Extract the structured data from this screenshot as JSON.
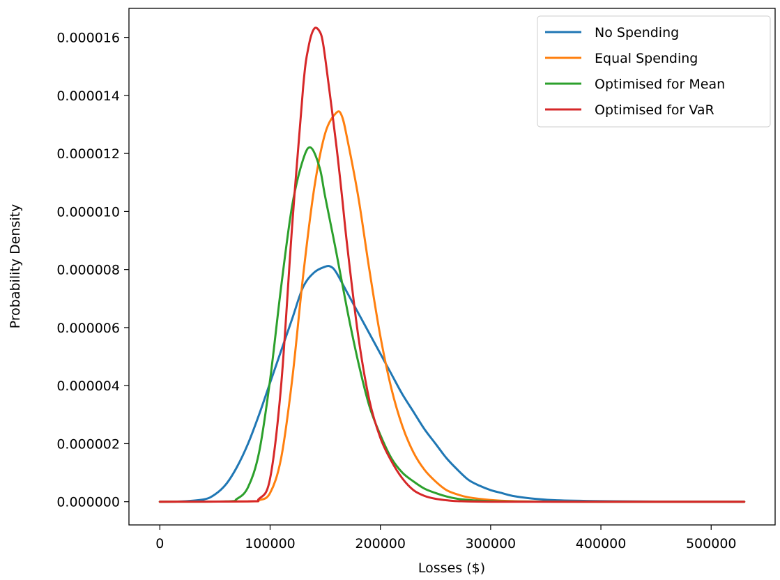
{
  "chart_data": {
    "type": "line",
    "xlabel": "Losses ($)",
    "ylabel": "Probability Density",
    "xlim": [
      -28000,
      558000
    ],
    "ylim": [
      -8e-07,
      1.7e-05
    ],
    "xticks": [
      0,
      100000,
      200000,
      300000,
      400000,
      500000
    ],
    "xtick_labels": [
      "0",
      "100000",
      "200000",
      "300000",
      "400000",
      "500000"
    ],
    "yticks": [
      0,
      2e-06,
      4e-06,
      6e-06,
      8e-06,
      1e-05,
      1.2e-05,
      1.4e-05,
      1.6e-05
    ],
    "ytick_labels": [
      "0.000000",
      "0.000002",
      "0.000004",
      "0.000006",
      "0.000008",
      "0.000010",
      "0.000012",
      "0.000014",
      "0.000016"
    ],
    "grid": false,
    "legend_position": "top-right",
    "series": [
      {
        "name": "No Spending",
        "color": "#1f77b4",
        "x": [
          0,
          20000,
          40000,
          50000,
          60000,
          70000,
          80000,
          90000,
          100000,
          110000,
          120000,
          130000,
          140000,
          150000,
          155000,
          160000,
          170000,
          180000,
          190000,
          200000,
          210000,
          220000,
          230000,
          240000,
          250000,
          260000,
          270000,
          280000,
          290000,
          300000,
          310000,
          320000,
          340000,
          360000,
          400000,
          450000,
          530000
        ],
        "y": [
          0,
          1e-08,
          8e-08,
          2.5e-07,
          6e-07,
          1.2e-06,
          2e-06,
          3e-06,
          4.1e-06,
          5.2e-06,
          6.3e-06,
          7.4e-06,
          7.9e-06,
          8.1e-06,
          8.1e-06,
          7.9e-06,
          7.2e-06,
          6.5e-06,
          5.8e-06,
          5.1e-06,
          4.4e-06,
          3.7e-06,
          3.1e-06,
          2.5e-06,
          2e-06,
          1.5e-06,
          1.1e-06,
          7.5e-07,
          5.5e-07,
          4e-07,
          3e-07,
          2e-07,
          1e-07,
          5e-08,
          2e-08,
          5e-09,
          0
        ]
      },
      {
        "name": "Equal Spending",
        "color": "#ff7f0e",
        "x": [
          0,
          80000,
          90000,
          100000,
          110000,
          120000,
          130000,
          140000,
          150000,
          160000,
          165000,
          170000,
          180000,
          190000,
          200000,
          210000,
          220000,
          230000,
          240000,
          250000,
          260000,
          270000,
          280000,
          300000,
          320000,
          350000,
          400000,
          530000
        ],
        "y": [
          0,
          1e-08,
          5e-08,
          3e-07,
          1.5e-06,
          4.2e-06,
          7.8e-06,
          1.08e-05,
          1.27e-05,
          1.34e-05,
          1.33e-05,
          1.25e-05,
          1.05e-05,
          8e-06,
          5.7e-06,
          3.9e-06,
          2.6e-06,
          1.7e-06,
          1.1e-06,
          7e-07,
          4e-07,
          2.5e-07,
          1.5e-07,
          6e-08,
          2e-08,
          5e-09,
          0,
          0
        ]
      },
      {
        "name": "Optimised for Mean",
        "color": "#2ca02c",
        "x": [
          0,
          60000,
          70000,
          80000,
          90000,
          100000,
          110000,
          120000,
          130000,
          137000,
          145000,
          150000,
          160000,
          170000,
          180000,
          190000,
          200000,
          210000,
          220000,
          230000,
          240000,
          250000,
          260000,
          270000,
          280000,
          300000,
          330000,
          400000,
          530000
        ],
        "y": [
          0,
          1e-08,
          1e-07,
          5e-07,
          1.7e-06,
          4.2e-06,
          7.4e-06,
          1.02e-05,
          1.18e-05,
          1.22e-05,
          1.15e-05,
          1.05e-05,
          8.6e-06,
          6.6e-06,
          4.8e-06,
          3.3e-06,
          2.3e-06,
          1.5e-06,
          1e-06,
          7e-07,
          4.5e-07,
          3e-07,
          1.8e-07,
          1e-07,
          6e-08,
          2e-08,
          5e-09,
          0,
          0
        ]
      },
      {
        "name": "Optimised for VaR",
        "color": "#d62728",
        "x": [
          0,
          80000,
          90000,
          100000,
          110000,
          120000,
          130000,
          135000,
          140000,
          145000,
          148000,
          152000,
          160000,
          165000,
          170000,
          180000,
          190000,
          200000,
          210000,
          220000,
          230000,
          240000,
          250000,
          260000,
          270000,
          300000,
          400000,
          530000
        ],
        "y": [
          0,
          1e-08,
          1e-07,
          8e-07,
          4e-06,
          9.5e-06,
          1.43e-05,
          1.57e-05,
          1.63e-05,
          1.62e-05,
          1.58e-05,
          1.47e-05,
          1.23e-05,
          1.06e-05,
          8.8e-06,
          5.7e-06,
          3.5e-06,
          2.2e-06,
          1.4e-06,
          8e-07,
          4e-07,
          2e-07,
          1e-07,
          5e-08,
          2e-08,
          0,
          0,
          0
        ]
      }
    ]
  }
}
